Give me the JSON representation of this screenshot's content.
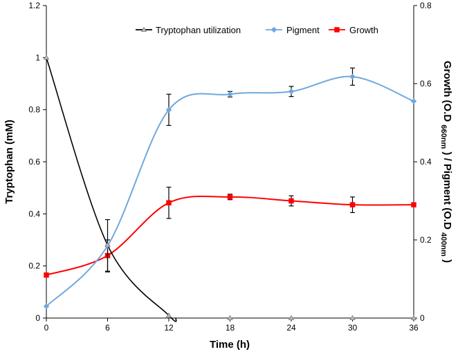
{
  "chart_data": {
    "type": "line",
    "title": "",
    "xlabel": "Time (h)",
    "ylabel_left": "Tryptophan (mM)",
    "ylabel_right": {
      "growth": "Growth (O.D",
      "growth_sub": "660nm",
      "pigment": ") / Pigment (O.D",
      "pigment_sub": "400nm",
      "close": ")"
    },
    "x": [
      0,
      6,
      12,
      18,
      24,
      30,
      36
    ],
    "xlim": [
      0,
      36
    ],
    "xticks": [
      "0",
      "6",
      "12",
      "18",
      "24",
      "30",
      "36"
    ],
    "ylim_left": [
      0,
      1.2
    ],
    "yticks_left": [
      "0",
      "0.2",
      "0.4",
      "0.6",
      "0.8",
      "1",
      "1.2"
    ],
    "ylim_right": [
      0,
      0.8
    ],
    "yticks_right": [
      "0",
      "0.2",
      "0.4",
      "0.6",
      "0.8"
    ],
    "legend_position": "top-right",
    "series": [
      {
        "name": "Tryptophan utilization",
        "axis": "left",
        "color": "#000000",
        "marker": "triangle",
        "x": [
          0,
          6,
          12,
          18,
          24,
          30,
          36
        ],
        "values": [
          1.0,
          0.28,
          0.01,
          0,
          0,
          0,
          0
        ],
        "errors": [
          0,
          0,
          0,
          0,
          0,
          0,
          0
        ]
      },
      {
        "name": "Pigment",
        "axis": "right",
        "color": "#6fa8dc",
        "marker": "diamond",
        "x": [
          0,
          6,
          12,
          18,
          24,
          30,
          36
        ],
        "values": [
          0.03,
          0.185,
          0.533,
          0.573,
          0.58,
          0.618,
          0.555
        ],
        "errors": [
          0,
          0.067,
          0.04,
          0.007,
          0.013,
          0.022,
          0
        ]
      },
      {
        "name": "Growth",
        "axis": "right",
        "color": "#ff0000",
        "marker": "square",
        "x": [
          0,
          6,
          12,
          18,
          24,
          30,
          36
        ],
        "values": [
          0.11,
          0.16,
          0.295,
          0.31,
          0.3,
          0.29,
          0.29
        ],
        "errors": [
          0,
          0.04,
          0.04,
          0.007,
          0.013,
          0.02,
          0
        ]
      }
    ]
  }
}
